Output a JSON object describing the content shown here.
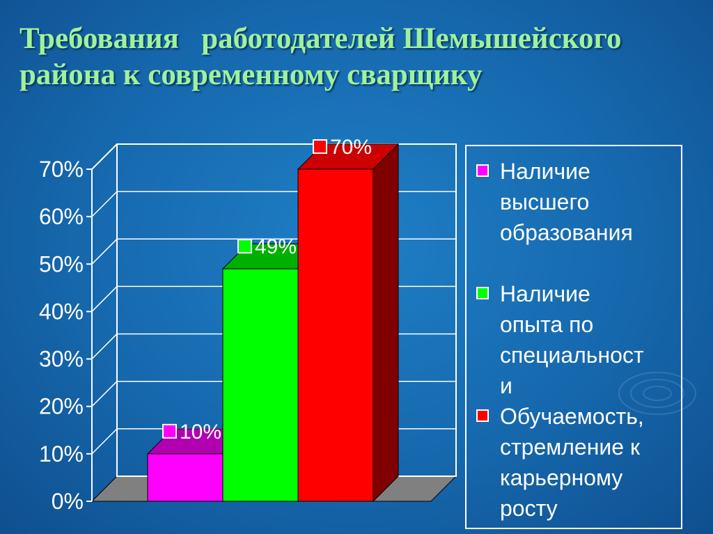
{
  "slide": {
    "title_line1": "Требования   работодателей Шемышейского",
    "title_line2": "района к современному сварщику"
  },
  "colors": {
    "background": "#1668ad",
    "title": "#9ff29b",
    "series": [
      "#ff00ff",
      "#00ff00",
      "#ff0000"
    ],
    "series_top": [
      "#b000b0",
      "#00b000",
      "#cc0000"
    ],
    "series_side": [
      "#800080",
      "#008000",
      "#800000"
    ],
    "floor": "#808080"
  },
  "chart_data": {
    "type": "bar",
    "three_d": true,
    "title": "",
    "xlabel": "",
    "ylabel": "",
    "ylim": [
      0,
      0.7
    ],
    "y_ticks": [
      "0%",
      "10%",
      "20%",
      "30%",
      "40%",
      "50%",
      "60%",
      "70%"
    ],
    "grid": true,
    "legend_position": "right",
    "series": [
      {
        "name": "Наличие высшего образования",
        "value": 0.1,
        "label": "10%"
      },
      {
        "name": "Наличие опыта по специальности",
        "value": 0.49,
        "label": "49%"
      },
      {
        "name": "Обучаемость, стремление к карьерному росту",
        "value": 0.7,
        "label": "70%"
      }
    ]
  },
  "legend": {
    "items": [
      {
        "lines": [
          "Наличие",
          "высшего",
          "образования"
        ]
      },
      {
        "lines": [
          "Наличие",
          "опыта по",
          "специальност",
          "и"
        ]
      },
      {
        "lines": [
          "Обучаемость,",
          "стремление к",
          "карьерному",
          "росту"
        ]
      }
    ]
  }
}
